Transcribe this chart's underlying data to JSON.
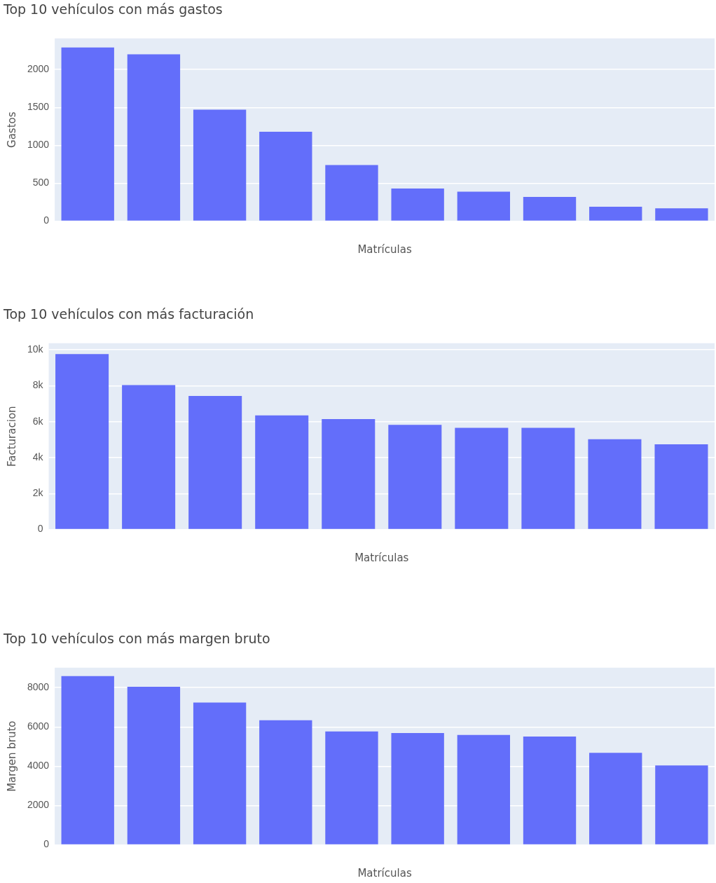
{
  "chart_data": [
    {
      "type": "bar",
      "title": "Top 10 vehículos con más gastos",
      "xlabel": "Matrículas",
      "ylabel": "Gastos",
      "categories": [
        null,
        null,
        null,
        null,
        null,
        null,
        null,
        null,
        null,
        null
      ],
      "color": "#636efa",
      "values": [
        2290,
        2200,
        1470,
        1180,
        740,
        430,
        390,
        320,
        190,
        170
      ],
      "ylim": [
        0,
        2410
      ],
      "yticks": [
        0,
        500,
        1000,
        1500,
        2000
      ],
      "grid": "y"
    },
    {
      "type": "bar",
      "title": "Top 10 vehículos con más facturación",
      "xlabel": "Matrículas",
      "ylabel": "Facturacion",
      "categories": [
        null,
        null,
        null,
        null,
        null,
        null,
        null,
        null,
        null,
        null
      ],
      "color": "#636efa",
      "values": [
        9760,
        8030,
        7430,
        6350,
        6140,
        5820,
        5660,
        5660,
        5020,
        4740
      ],
      "ylim": [
        0,
        10360
      ],
      "yticks": [
        0,
        {
          "value": 2000,
          "label": "2k"
        },
        {
          "value": 4000,
          "label": "4k"
        },
        {
          "value": 6000,
          "label": "6k"
        },
        {
          "value": 8000,
          "label": "8k"
        },
        {
          "value": 10000,
          "label": "10k"
        }
      ],
      "grid": "y"
    },
    {
      "type": "bar",
      "title": "Top 10 vehículos con más margen bruto",
      "xlabel": "Matrículas",
      "ylabel": "Margen bruto",
      "categories": [
        null,
        null,
        null,
        null,
        null,
        null,
        null,
        null,
        null,
        null
      ],
      "color": "#636efa",
      "values": [
        8580,
        8040,
        7240,
        6340,
        5770,
        5690,
        5590,
        5510,
        4680,
        4040
      ],
      "ylim": [
        0,
        9010
      ],
      "yticks": [
        0,
        2000,
        4000,
        6000,
        8000
      ],
      "grid": "y"
    }
  ]
}
